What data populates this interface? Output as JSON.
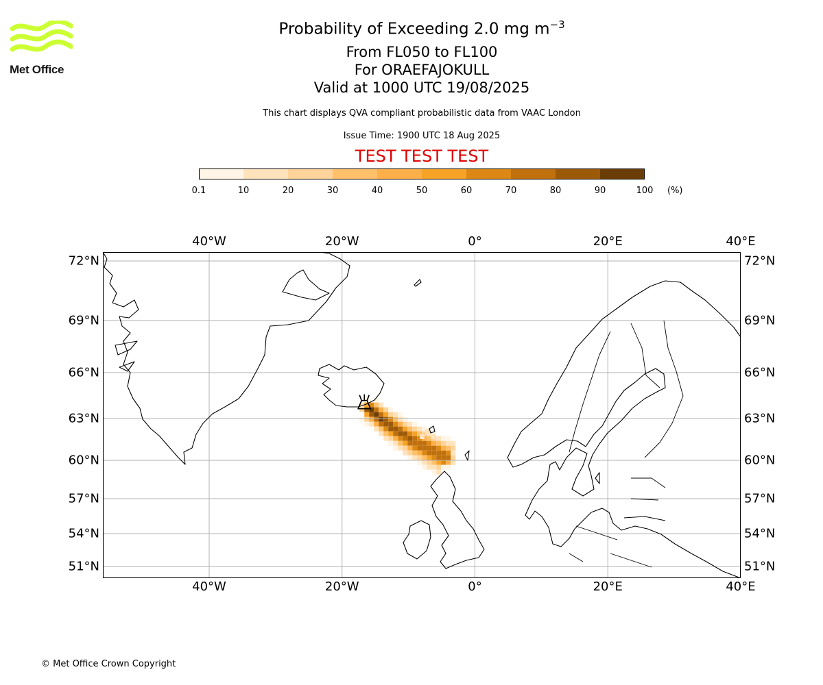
{
  "header": {
    "title_main": "Probability of Exceeding 2.0 mg m",
    "title_exp": "−3",
    "line_fl": "From FL050 to FL100",
    "line_volcano": "For ORAEFAJOKULL",
    "line_valid": "Valid at 1000 UTC 19/08/2025",
    "note": "This chart displays QVA compliant probabilistic data from VAAC London",
    "issue_time": "Issue Time: 1900 UTC 18 Aug 2025",
    "test_banner": "TEST TEST TEST"
  },
  "logo": {
    "text": "Met Office",
    "color": "#ccff33"
  },
  "colorbar": {
    "ticks": [
      "0.1",
      "10",
      "20",
      "30",
      "40",
      "50",
      "60",
      "70",
      "80",
      "90",
      "100"
    ],
    "units": "(%)",
    "colors": [
      "#fff5e6",
      "#ffe3bd",
      "#ffd49a",
      "#ffc06a",
      "#fdb04a",
      "#f6a328",
      "#dd8814",
      "#c0700c",
      "#9c5a08",
      "#6b3d06"
    ]
  },
  "map": {
    "lon_labels": [
      "40°W",
      "20°W",
      "0°",
      "20°E",
      "40°E"
    ],
    "lat_labels": [
      "72°N",
      "69°N",
      "66°N",
      "63°N",
      "60°N",
      "57°N",
      "54°N",
      "51°N"
    ],
    "lon_range": [
      -56,
      40
    ],
    "lat_range": [
      50,
      72.5
    ],
    "volcano": {
      "name": "ORAEFAJOKULL",
      "lon": -16.65,
      "lat": 64.0
    }
  },
  "footer": {
    "copyright": "© Met Office Crown Copyright"
  }
}
